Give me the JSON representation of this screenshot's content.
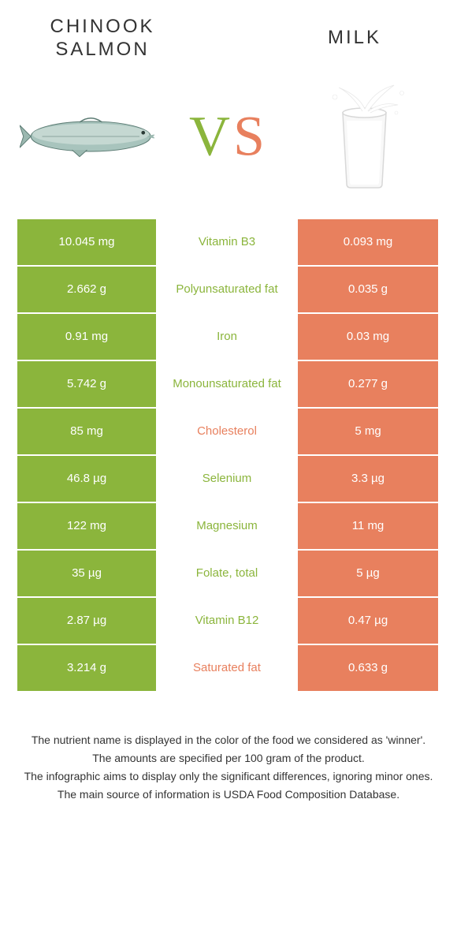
{
  "colors": {
    "green": "#8bb53c",
    "orange": "#e8805e",
    "orange_text": "#e8805e",
    "green_text": "#8bb53c",
    "white": "#ffffff"
  },
  "header": {
    "left_title": "CHINOOK SALMON",
    "right_title": "MILK",
    "vs": {
      "v": "V",
      "s": "S"
    }
  },
  "rows": [
    {
      "left": "10.045 mg",
      "label": "Vitamin B3",
      "right": "0.093 mg",
      "winner": "left"
    },
    {
      "left": "2.662 g",
      "label": "Polyunsaturated fat",
      "right": "0.035 g",
      "winner": "left"
    },
    {
      "left": "0.91 mg",
      "label": "Iron",
      "right": "0.03 mg",
      "winner": "left"
    },
    {
      "left": "5.742 g",
      "label": "Monounsaturated fat",
      "right": "0.277 g",
      "winner": "left"
    },
    {
      "left": "85 mg",
      "label": "Cholesterol",
      "right": "5 mg",
      "winner": "right"
    },
    {
      "left": "46.8 µg",
      "label": "Selenium",
      "right": "3.3 µg",
      "winner": "left"
    },
    {
      "left": "122 mg",
      "label": "Magnesium",
      "right": "11 mg",
      "winner": "left"
    },
    {
      "left": "35 µg",
      "label": "Folate, total",
      "right": "5 µg",
      "winner": "left"
    },
    {
      "left": "2.87 µg",
      "label": "Vitamin B12",
      "right": "0.47 µg",
      "winner": "left"
    },
    {
      "left": "3.214 g",
      "label": "Saturated fat",
      "right": "0.633 g",
      "winner": "right"
    }
  ],
  "footer": {
    "line1": "The nutrient name is displayed in the color of the food we considered as 'winner'.",
    "line2": "The amounts are specified per 100 gram of the product.",
    "line3": "The infographic aims to display only the significant differences, ignoring minor ones.",
    "line4": "The main source of information is USDA Food Composition Database."
  }
}
